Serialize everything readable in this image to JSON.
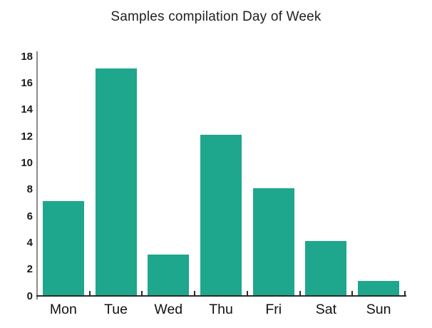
{
  "chart_data": {
    "type": "bar",
    "title": "Samples compilation Day of Week",
    "categories": [
      "Mon",
      "Tue",
      "Wed",
      "Thu",
      "Fri",
      "Sat",
      "Sun"
    ],
    "values": [
      7.1,
      17.1,
      3.1,
      12.1,
      8.1,
      4.1,
      1.1
    ],
    "xlabel": "",
    "ylabel": "",
    "ylim": [
      0,
      18
    ],
    "ytick_step": 2,
    "ytick_labels": [
      "0",
      "2",
      "4",
      "6",
      "8",
      "10",
      "12",
      "14",
      "16",
      "18"
    ],
    "grid": false,
    "legend": "none",
    "bar_color": "#1EA78D"
  },
  "colors": {
    "bar": "#1EA78D",
    "title_text": "#1F1F1F",
    "axis_label_text": "#1A1A1A",
    "y_axis_line": "#8C8C8C",
    "x_axis_line": "#2B2B2B",
    "background": "#FFFFFF"
  }
}
